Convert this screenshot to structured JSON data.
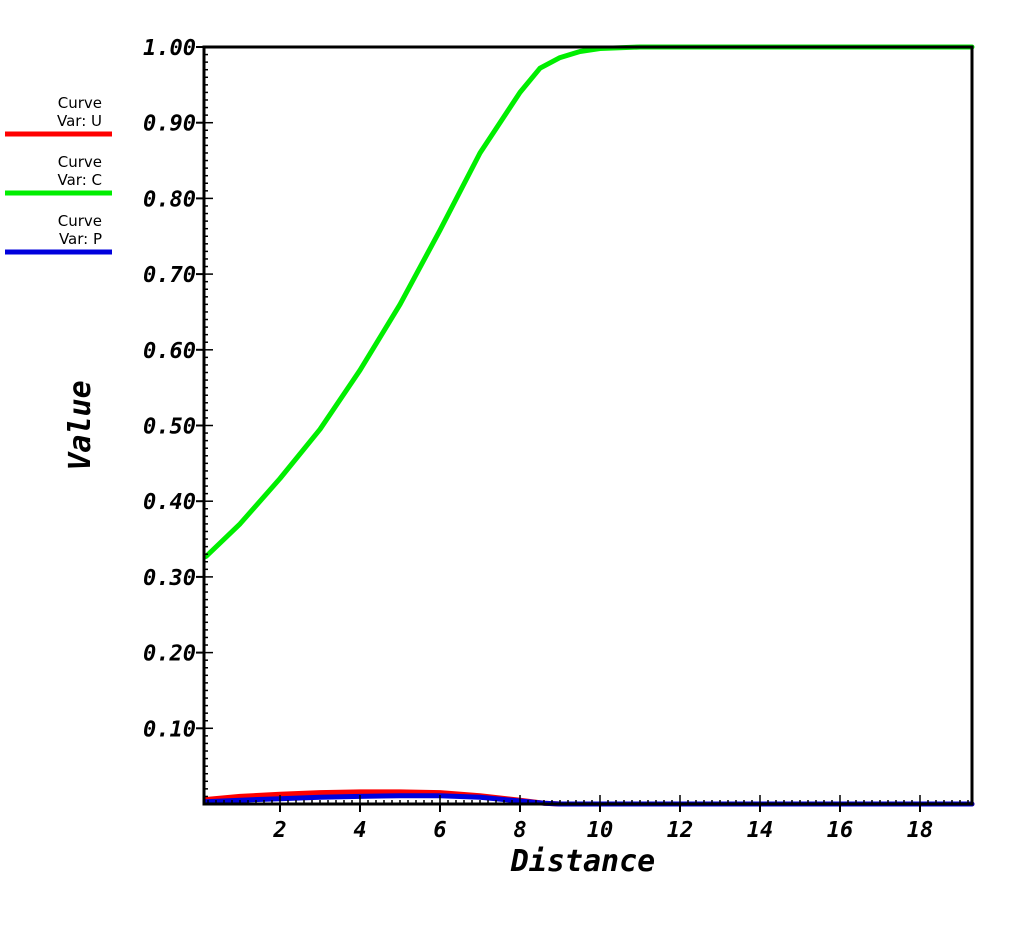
{
  "chart_data": {
    "type": "line",
    "xlabel": "Distance",
    "ylabel": "Value",
    "xlim": [
      0.1,
      19.3
    ],
    "ylim": [
      0.0,
      1.0
    ],
    "x_ticks": [
      2,
      4,
      6,
      8,
      10,
      12,
      14,
      16,
      18
    ],
    "x_tick_labels": [
      "2",
      "4",
      "6",
      "8",
      "10",
      "12",
      "14",
      "16",
      "18"
    ],
    "y_ticks": [
      0.1,
      0.2,
      0.3,
      0.4,
      0.5,
      0.6,
      0.7,
      0.8,
      0.9,
      1.0
    ],
    "y_tick_labels": [
      "0.10",
      "0.20",
      "0.30",
      "0.40",
      "0.50",
      "0.60",
      "0.70",
      "0.80",
      "0.90",
      "1.00"
    ],
    "grid": false,
    "legend_position": "left",
    "series": [
      {
        "name": "Var: U",
        "legend_title": "Curve",
        "color": "#ff0000",
        "x": [
          0.15,
          1,
          2,
          3,
          4,
          5,
          6,
          7,
          8,
          8.6,
          9,
          10,
          12,
          14,
          16,
          18,
          19.3
        ],
        "y": [
          0.006,
          0.01,
          0.013,
          0.015,
          0.016,
          0.016,
          0.015,
          0.011,
          0.005,
          0.001,
          0.0,
          0.0,
          0.0,
          0.0,
          0.0,
          0.0,
          0.0
        ]
      },
      {
        "name": "Var: C",
        "legend_title": "Curve",
        "color": "#00ee00",
        "x": [
          0.15,
          1,
          2,
          3,
          4,
          5,
          6,
          7,
          8,
          8.5,
          9,
          9.5,
          10,
          11,
          12,
          14,
          16,
          18,
          19.3
        ],
        "y": [
          0.327,
          0.37,
          0.43,
          0.495,
          0.573,
          0.66,
          0.758,
          0.86,
          0.94,
          0.972,
          0.986,
          0.994,
          0.998,
          1.0,
          1.0,
          1.0,
          1.0,
          1.0,
          1.0
        ]
      },
      {
        "name": "Var: P",
        "legend_title": "Curve",
        "color": "#0000dd",
        "x": [
          0.15,
          1,
          2,
          3,
          4,
          5,
          5.5,
          6,
          7,
          8,
          8.6,
          9,
          10,
          12,
          14,
          16,
          18,
          19.3
        ],
        "y": [
          0.003,
          0.005,
          0.007,
          0.009,
          0.01,
          0.011,
          0.011,
          0.011,
          0.009,
          0.004,
          0.001,
          0.0,
          0.0,
          0.0,
          0.0,
          0.0,
          0.0,
          0.0
        ]
      }
    ]
  }
}
